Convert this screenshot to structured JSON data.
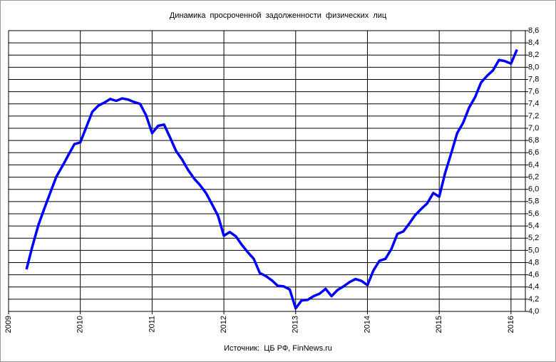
{
  "chart_data": {
    "type": "line",
    "title": "Динамика  просроченной  задолженности  физических  лиц",
    "source": "Источник:  ЦБ РФ, FinNews.ru",
    "color": "#0000ff",
    "grid": true,
    "x": [
      2009.25,
      2009.333,
      2009.417,
      2009.5,
      2009.583,
      2009.667,
      2009.75,
      2009.833,
      2009.917,
      2010,
      2010.083,
      2010.167,
      2010.25,
      2010.333,
      2010.417,
      2010.5,
      2010.583,
      2010.667,
      2010.75,
      2010.833,
      2010.917,
      2011,
      2011.083,
      2011.167,
      2011.25,
      2011.333,
      2011.417,
      2011.5,
      2011.583,
      2011.667,
      2011.75,
      2011.833,
      2011.917,
      2012,
      2012.083,
      2012.167,
      2012.25,
      2012.333,
      2012.417,
      2012.5,
      2012.583,
      2012.667,
      2012.75,
      2012.833,
      2012.917,
      2013,
      2013.083,
      2013.167,
      2013.25,
      2013.333,
      2013.417,
      2013.5,
      2013.583,
      2013.667,
      2013.75,
      2013.833,
      2013.917,
      2014,
      2014.083,
      2014.167,
      2014.25,
      2014.333,
      2014.417,
      2014.5,
      2014.583,
      2014.667,
      2014.75,
      2014.833,
      2014.917,
      2015,
      2015.083,
      2015.167,
      2015.25,
      2015.333,
      2015.417,
      2015.5,
      2015.583,
      2015.667,
      2015.75,
      2015.833,
      2015.917,
      2016,
      2016.083
    ],
    "values": [
      4.69,
      5.07,
      5.42,
      5.69,
      5.95,
      6.21,
      6.38,
      6.56,
      6.74,
      6.77,
      7.02,
      7.27,
      7.37,
      7.42,
      7.48,
      7.45,
      7.49,
      7.47,
      7.43,
      7.4,
      7.21,
      6.92,
      7.04,
      7.06,
      6.85,
      6.63,
      6.49,
      6.32,
      6.18,
      6.07,
      5.94,
      5.76,
      5.57,
      5.24,
      5.3,
      5.23,
      5.09,
      4.97,
      4.86,
      4.63,
      4.58,
      4.51,
      4.42,
      4.41,
      4.36,
      4.05,
      4.18,
      4.19,
      4.25,
      4.29,
      4.37,
      4.25,
      4.35,
      4.41,
      4.48,
      4.53,
      4.5,
      4.43,
      4.67,
      4.83,
      4.86,
      5.02,
      5.27,
      5.31,
      5.44,
      5.58,
      5.68,
      5.77,
      5.94,
      5.88,
      6.27,
      6.59,
      6.92,
      7.09,
      7.34,
      7.51,
      7.75,
      7.86,
      7.95,
      8.12,
      8.1,
      8.06,
      8.29
    ],
    "xlim": [
      2009,
      2016.2
    ],
    "xticks": [
      2009,
      2010,
      2011,
      2012,
      2013,
      2014,
      2015,
      2016
    ],
    "ylim": [
      4,
      8.6
    ],
    "yticks": [
      {
        "value": 4,
        "label": "4,0"
      },
      {
        "value": 4.2,
        "label": "4,2"
      },
      {
        "value": 4.4,
        "label": "4,4"
      },
      {
        "value": 4.6,
        "label": "4,6"
      },
      {
        "value": 4.8,
        "label": "4,8"
      },
      {
        "value": 5,
        "label": "5,0"
      },
      {
        "value": 5.2,
        "label": "5,2"
      },
      {
        "value": 5.4,
        "label": "5,4"
      },
      {
        "value": 5.6,
        "label": "5,6"
      },
      {
        "value": 5.8,
        "label": "5,8"
      },
      {
        "value": 6,
        "label": "6,0"
      },
      {
        "value": 6.2,
        "label": "6,2"
      },
      {
        "value": 6.4,
        "label": "6,4"
      },
      {
        "value": 6.6,
        "label": "6,6"
      },
      {
        "value": 6.8,
        "label": "6,8"
      },
      {
        "value": 7,
        "label": "7,0"
      },
      {
        "value": 7.2,
        "label": "7,2"
      },
      {
        "value": 7.4,
        "label": "7,4"
      },
      {
        "value": 7.6,
        "label": "7,6"
      },
      {
        "value": 7.8,
        "label": "7,8"
      },
      {
        "value": 8,
        "label": "8,0"
      },
      {
        "value": 8.2,
        "label": "8,2"
      },
      {
        "value": 8.4,
        "label": "8,4"
      },
      {
        "value": 8.6,
        "label": "8,6"
      }
    ]
  }
}
